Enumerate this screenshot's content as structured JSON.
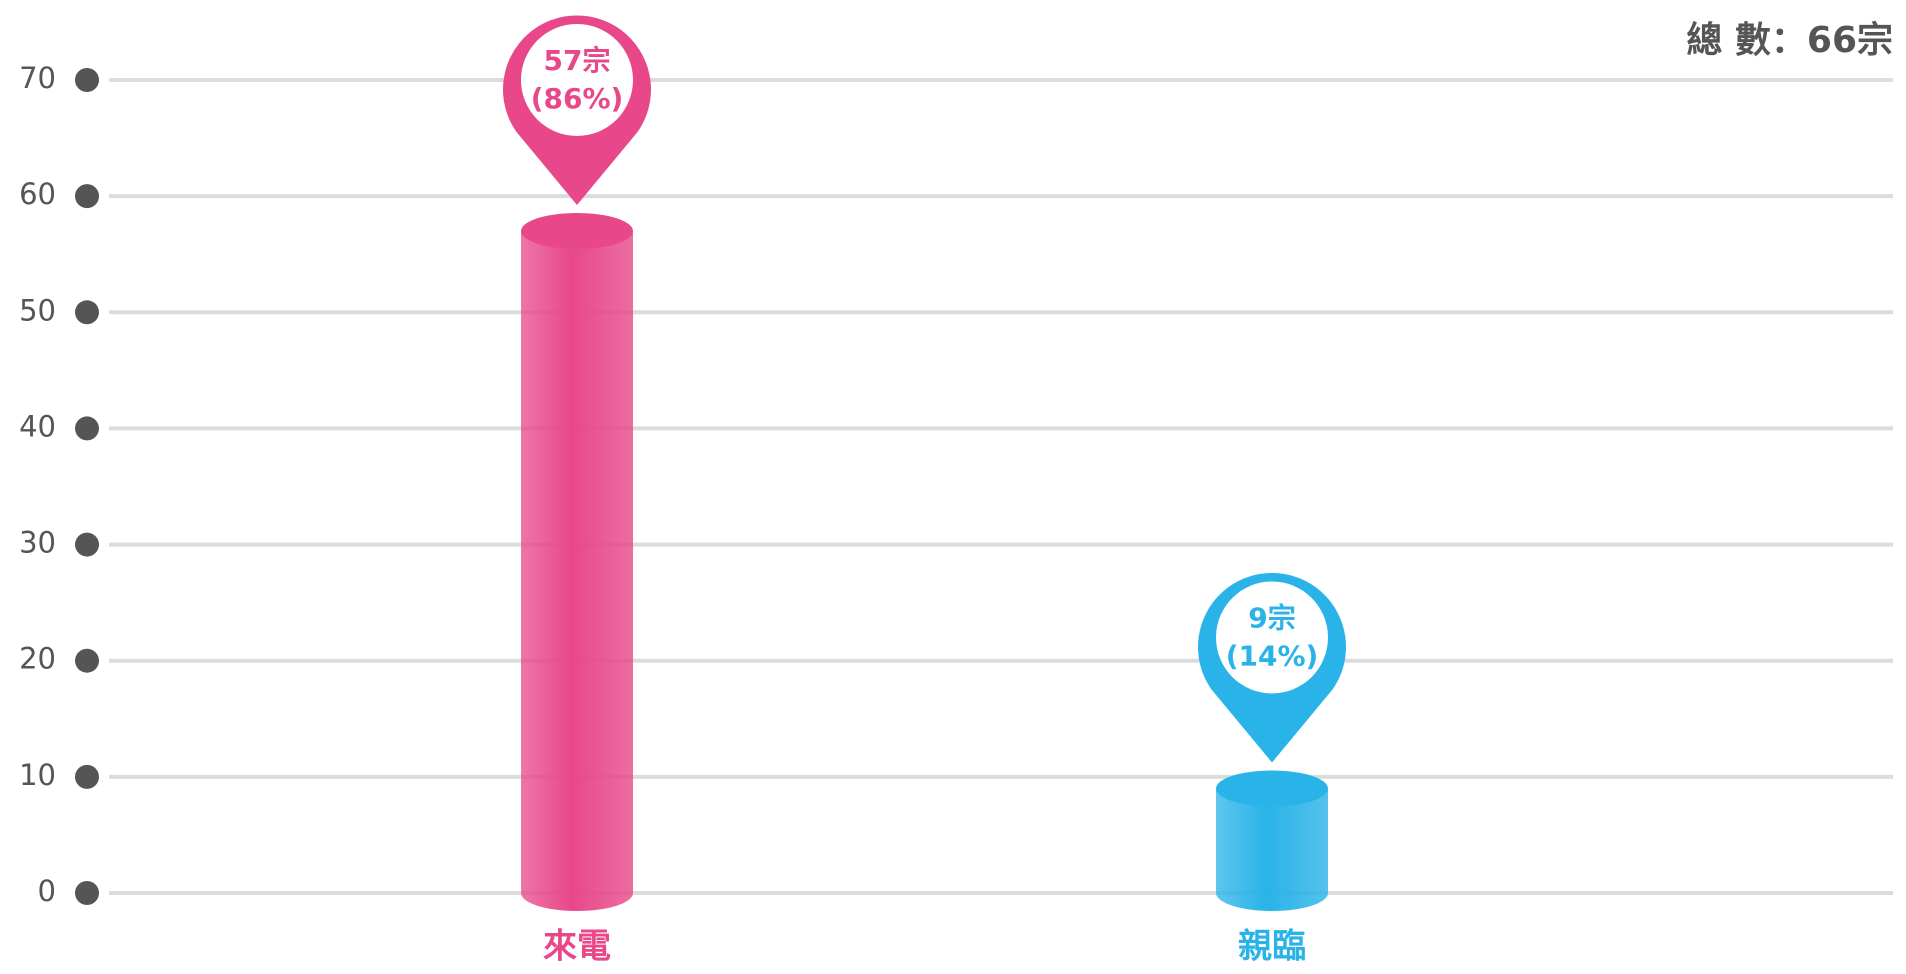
{
  "chart_data": {
    "type": "bar",
    "title": "總 數：66宗",
    "categories": [
      "來電",
      "親臨"
    ],
    "values": [
      57,
      9
    ],
    "value_labels": [
      "57宗",
      "9宗"
    ],
    "percent_labels": [
      "(86%)",
      "(14%)"
    ],
    "colors": [
      "#e8488a",
      "#29b3e8"
    ],
    "ylim": [
      0,
      70
    ],
    "yticks": [
      0,
      10,
      20,
      30,
      40,
      50,
      60,
      70
    ],
    "grid": true
  }
}
